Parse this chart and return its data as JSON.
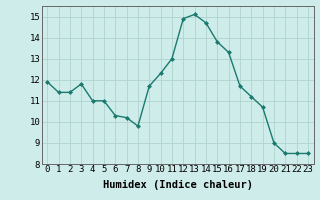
{
  "x": [
    0,
    1,
    2,
    3,
    4,
    5,
    6,
    7,
    8,
    9,
    10,
    11,
    12,
    13,
    14,
    15,
    16,
    17,
    18,
    19,
    20,
    21,
    22,
    23
  ],
  "y": [
    11.9,
    11.4,
    11.4,
    11.8,
    11.0,
    11.0,
    10.3,
    10.2,
    9.8,
    11.7,
    12.3,
    13.0,
    14.9,
    15.1,
    14.7,
    13.8,
    13.3,
    11.7,
    11.2,
    10.7,
    9.0,
    8.5,
    8.5,
    8.5
  ],
  "line_color": "#1a7a6e",
  "marker": "D",
  "marker_size": 2.0,
  "line_width": 1.0,
  "bg_color": "#ceecea",
  "grid_color": "#b0d4d0",
  "xlabel": "Humidex (Indice chaleur)",
  "xlabel_fontsize": 7.5,
  "ylim": [
    8,
    15.5
  ],
  "xlim": [
    -0.5,
    23.5
  ],
  "yticks": [
    8,
    9,
    10,
    11,
    12,
    13,
    14,
    15
  ],
  "xticks": [
    0,
    1,
    2,
    3,
    4,
    5,
    6,
    7,
    8,
    9,
    10,
    11,
    12,
    13,
    14,
    15,
    16,
    17,
    18,
    19,
    20,
    21,
    22,
    23
  ],
  "tick_fontsize": 6.5
}
